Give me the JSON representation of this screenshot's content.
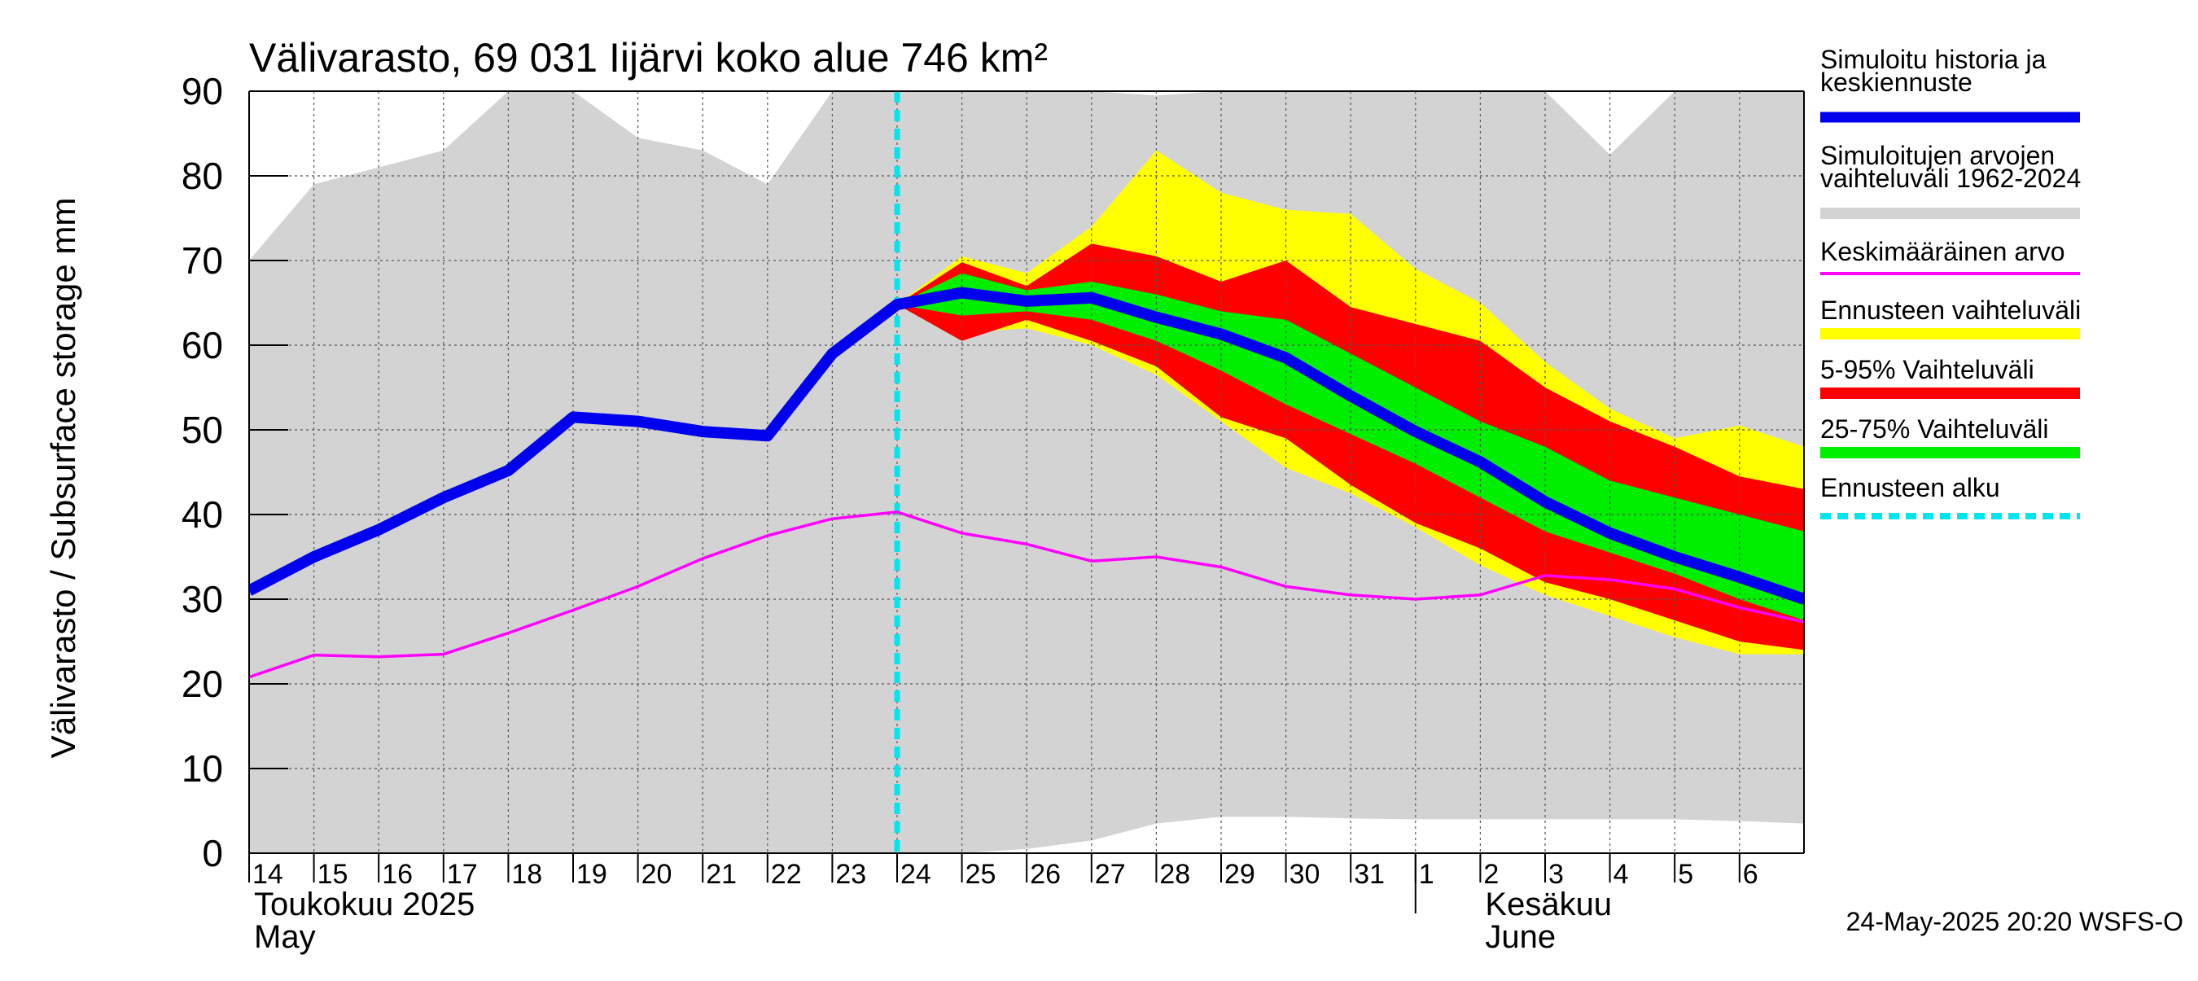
{
  "title": "Välivarasto, 69 031 Iijärvi koko alue 746 km²",
  "footer": "24-May-2025 20:20 WSFS-O",
  "colors": {
    "history": "#0000ee",
    "range_hist": "#d3d3d3",
    "mean": "#ff00ff",
    "forecast_range": "#ffff00",
    "p5_95": "#ff0000",
    "p25_75": "#00ee00",
    "forecast_start": "#00e5ee"
  },
  "legend": [
    {
      "key": "history",
      "lines": [
        "Simuloitu historia ja",
        "keskiennuste"
      ],
      "style": "thick"
    },
    {
      "key": "range_hist",
      "lines": [
        "Simuloitujen arvojen",
        "vaihteluväli 1962-2024"
      ],
      "style": "band"
    },
    {
      "key": "mean",
      "lines": [
        "Keskimääräinen arvo"
      ],
      "style": "thin"
    },
    {
      "key": "forecast_range",
      "lines": [
        "Ennusteen vaihteluväli"
      ],
      "style": "band"
    },
    {
      "key": "p5_95",
      "lines": [
        "5-95% Vaihteluväli"
      ],
      "style": "band"
    },
    {
      "key": "p25_75",
      "lines": [
        "25-75% Vaihteluväli"
      ],
      "style": "band"
    },
    {
      "key": "forecast_start",
      "lines": [
        "Ennusteen alku"
      ],
      "style": "dashed"
    }
  ],
  "chart_data": {
    "type": "area",
    "ylabel": "Välivarasto / Subsurface storage  mm",
    "ylim": [
      0,
      90
    ],
    "yticks": [
      0,
      10,
      20,
      30,
      40,
      50,
      60,
      70,
      80,
      90
    ],
    "grid": true,
    "legend_position": "right",
    "x_days": [
      "14",
      "15",
      "16",
      "17",
      "18",
      "19",
      "20",
      "21",
      "22",
      "23",
      "24",
      "25",
      "26",
      "27",
      "28",
      "29",
      "30",
      "31",
      "1",
      "2",
      "3",
      "4",
      "5",
      "6"
    ],
    "month_labels": [
      {
        "day_index": 0,
        "lines": [
          "Toukokuu  2025",
          "May"
        ]
      },
      {
        "day_index": 19,
        "lines": [
          "Kesäkuu",
          "June"
        ]
      }
    ],
    "forecast_start_day": 10,
    "series": [
      {
        "name": "Simuloitujen arvojen vaihteluväli 1962-2024",
        "key": "range_hist",
        "kind": "band",
        "upper": [
          [
            0,
            70
          ],
          [
            1,
            79
          ],
          [
            2,
            81
          ],
          [
            3,
            83
          ],
          [
            4,
            92
          ],
          [
            5,
            91
          ],
          [
            6,
            84.5
          ],
          [
            7,
            83
          ],
          [
            8,
            79
          ],
          [
            9,
            92
          ],
          [
            10,
            92
          ],
          [
            11,
            92
          ],
          [
            12,
            92
          ],
          [
            13,
            91
          ],
          [
            14,
            89.5
          ],
          [
            15,
            92
          ],
          [
            16,
            92
          ],
          [
            17,
            92
          ],
          [
            18,
            92
          ],
          [
            19,
            92
          ],
          [
            20,
            92
          ],
          [
            21,
            82.5
          ],
          [
            22,
            92
          ],
          [
            23,
            92
          ],
          [
            24,
            92
          ]
        ],
        "lower": [
          [
            0,
            0
          ],
          [
            1,
            0
          ],
          [
            2,
            0
          ],
          [
            3,
            0
          ],
          [
            4,
            0
          ],
          [
            5,
            0
          ],
          [
            6,
            0
          ],
          [
            7,
            0
          ],
          [
            8,
            0
          ],
          [
            9,
            0
          ],
          [
            10,
            0
          ],
          [
            11,
            0
          ],
          [
            12,
            0.5
          ],
          [
            13,
            1.5
          ],
          [
            14,
            3.5
          ],
          [
            15,
            4.3
          ],
          [
            16,
            4.3
          ],
          [
            17,
            4.1
          ],
          [
            18,
            4
          ],
          [
            19,
            4
          ],
          [
            20,
            4
          ],
          [
            21,
            4
          ],
          [
            22,
            4
          ],
          [
            23,
            3.8
          ],
          [
            24,
            3.5
          ]
        ]
      },
      {
        "name": "Ennusteen vaihteluväli",
        "key": "forecast_range",
        "kind": "band",
        "upper": [
          [
            10,
            64.8
          ],
          [
            11,
            70.5
          ],
          [
            12,
            68.5
          ],
          [
            13,
            74
          ],
          [
            14,
            83
          ],
          [
            15,
            78
          ],
          [
            16,
            76
          ],
          [
            17,
            75.5
          ],
          [
            18,
            69
          ],
          [
            19,
            65
          ],
          [
            20,
            58
          ],
          [
            21,
            52.5
          ],
          [
            22,
            49
          ],
          [
            23,
            50.5
          ],
          [
            24,
            48
          ]
        ],
        "lower": [
          [
            10,
            64.8
          ],
          [
            11,
            61.5
          ],
          [
            12,
            62
          ],
          [
            13,
            60
          ],
          [
            14,
            56.5
          ],
          [
            15,
            51
          ],
          [
            16,
            45.5
          ],
          [
            17,
            42.5
          ],
          [
            18,
            38.5
          ],
          [
            19,
            34
          ],
          [
            20,
            30.5
          ],
          [
            21,
            28
          ],
          [
            22,
            25.5
          ],
          [
            23,
            23.5
          ],
          [
            24,
            23.5
          ]
        ]
      },
      {
        "name": "5-95% Vaihteluväli",
        "key": "p5_95",
        "kind": "band",
        "upper": [
          [
            10,
            64.8
          ],
          [
            11,
            69.8
          ],
          [
            12,
            67
          ],
          [
            13,
            72
          ],
          [
            14,
            70.5
          ],
          [
            15,
            67.5
          ],
          [
            16,
            70
          ],
          [
            17,
            64.5
          ],
          [
            18,
            62.5
          ],
          [
            19,
            60.5
          ],
          [
            20,
            55
          ],
          [
            21,
            51
          ],
          [
            22,
            48
          ],
          [
            23,
            44.5
          ],
          [
            24,
            43
          ]
        ],
        "lower": [
          [
            10,
            64.8
          ],
          [
            11,
            60.5
          ],
          [
            12,
            63
          ],
          [
            13,
            60.5
          ],
          [
            14,
            57.5
          ],
          [
            15,
            51.5
          ],
          [
            16,
            49
          ],
          [
            17,
            43.5
          ],
          [
            18,
            39
          ],
          [
            19,
            36
          ],
          [
            20,
            32
          ],
          [
            21,
            30
          ],
          [
            22,
            27.5
          ],
          [
            23,
            25
          ],
          [
            24,
            24
          ]
        ]
      },
      {
        "name": "25-75% Vaihteluväli",
        "key": "p25_75",
        "kind": "band",
        "upper": [
          [
            10,
            64.8
          ],
          [
            11,
            68.5
          ],
          [
            12,
            66.5
          ],
          [
            13,
            67.5
          ],
          [
            14,
            66
          ],
          [
            15,
            64
          ],
          [
            16,
            63
          ],
          [
            17,
            59
          ],
          [
            18,
            55
          ],
          [
            19,
            51
          ],
          [
            20,
            48
          ],
          [
            21,
            44
          ],
          [
            22,
            42
          ],
          [
            23,
            40
          ],
          [
            24,
            38
          ]
        ],
        "lower": [
          [
            10,
            64.8
          ],
          [
            11,
            63.5
          ],
          [
            12,
            64
          ],
          [
            13,
            63
          ],
          [
            14,
            60.5
          ],
          [
            15,
            57
          ],
          [
            16,
            53
          ],
          [
            17,
            49.5
          ],
          [
            18,
            46
          ],
          [
            19,
            42
          ],
          [
            20,
            38
          ],
          [
            21,
            35.5
          ],
          [
            22,
            33
          ],
          [
            23,
            30
          ],
          [
            24,
            27.5
          ]
        ]
      },
      {
        "name": "Keskimääräinen arvo",
        "key": "mean",
        "kind": "line",
        "points": [
          [
            0,
            20.8
          ],
          [
            1,
            23.4
          ],
          [
            2,
            23.2
          ],
          [
            3,
            23.5
          ],
          [
            4,
            26
          ],
          [
            5,
            28.7
          ],
          [
            6,
            31.5
          ],
          [
            7,
            34.8
          ],
          [
            8,
            37.5
          ],
          [
            9,
            39.5
          ],
          [
            10,
            40.3
          ],
          [
            11,
            37.8
          ],
          [
            12,
            36.5
          ],
          [
            13,
            34.5
          ],
          [
            14,
            35
          ],
          [
            15,
            33.8
          ],
          [
            16,
            31.5
          ],
          [
            17,
            30.5
          ],
          [
            18,
            30
          ],
          [
            19,
            30.5
          ],
          [
            20,
            32.8
          ],
          [
            21,
            32.3
          ],
          [
            22,
            31.2
          ],
          [
            23,
            29
          ],
          [
            24,
            27.3
          ]
        ]
      },
      {
        "name": "Simuloitu historia ja keskiennuste",
        "key": "history",
        "kind": "line",
        "points": [
          [
            0,
            31
          ],
          [
            1,
            35
          ],
          [
            2,
            38.2
          ],
          [
            3,
            42
          ],
          [
            4,
            45.2
          ],
          [
            5,
            51.5
          ],
          [
            6,
            51
          ],
          [
            7,
            49.8
          ],
          [
            8,
            49.3
          ],
          [
            9,
            59
          ],
          [
            10,
            64.8
          ],
          [
            11,
            66.2
          ],
          [
            12,
            65.2
          ],
          [
            13,
            65.6
          ],
          [
            14,
            63.3
          ],
          [
            15,
            61.3
          ],
          [
            16,
            58.5
          ],
          [
            17,
            54
          ],
          [
            18,
            49.8
          ],
          [
            19,
            46.2
          ],
          [
            20,
            41.5
          ],
          [
            21,
            37.8
          ],
          [
            22,
            35
          ],
          [
            23,
            32.6
          ],
          [
            24,
            30
          ]
        ]
      }
    ]
  }
}
